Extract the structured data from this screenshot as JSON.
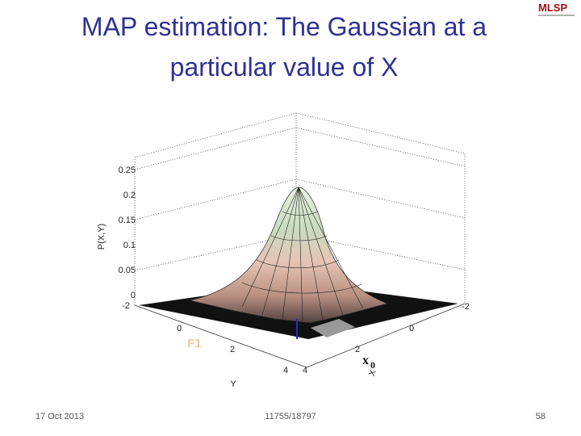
{
  "header": {
    "title_lines": [
      "MAP estimation: The Gaussian at a",
      "particular value of X"
    ],
    "logo": "MLSP"
  },
  "figure": {
    "z_axis_label": "P(X,Y)",
    "z_ticks": [
      "0",
      "0.05",
      "0.1",
      "0.15",
      "0.2",
      "0.25"
    ],
    "y_axis_label": "Y",
    "y_ticks": [
      "-2",
      "0",
      "2",
      "4"
    ],
    "x_axis_label": "X",
    "x_ticks": [
      "-2",
      "0",
      "2",
      "4"
    ],
    "annotations": {
      "f1": "F1",
      "x_symbol": "x",
      "x_subscript": "0"
    }
  },
  "footer": {
    "date": "17 Oct 2013",
    "course": "11755/18797",
    "page": "58"
  }
}
